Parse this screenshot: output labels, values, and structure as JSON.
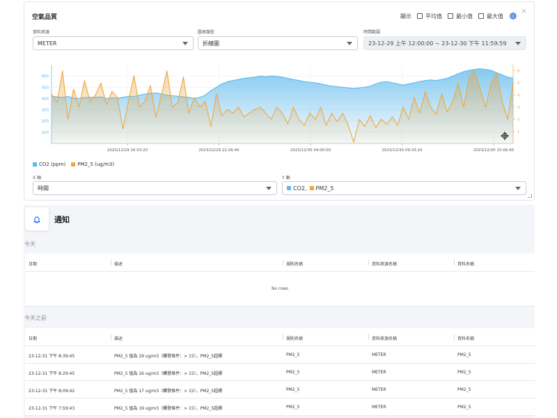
{
  "card": {
    "title": "空氣品質",
    "close": "×",
    "show_label": "顯示",
    "options": [
      "平均值",
      "最小值",
      "最大值"
    ]
  },
  "fields": {
    "source_label": "資料來源",
    "source_value": "METER",
    "type_label": "圖表類型",
    "type_value": "折線圖",
    "range_label": "時間範圍",
    "range_value": "23-12-29 上午 12:00:00 ~ 23-12-30 下午 11:59:59",
    "x_label": "X 軸",
    "x_value": "時間",
    "y_label": "Y 軸",
    "y_values": [
      "CO2,",
      "PM2_5"
    ]
  },
  "colors": {
    "co2": "#5cb8ec",
    "pm25": "#f0a73c",
    "accent": "#2f6de0"
  },
  "chart_data": {
    "type": "area",
    "x_ticks": [
      "2023/12/29 16:53:20",
      "2023/12/29 22:26:40",
      "2023/12/30 04:00:00",
      "2023/12/30 09:33:20",
      "2023/12/30 15:06:40"
    ],
    "y_left_ticks": [
      100,
      200,
      300,
      400,
      500,
      600
    ],
    "y_right_ticks": [
      1,
      2,
      3,
      4,
      5,
      6
    ],
    "ylim_left": [
      0,
      700
    ],
    "ylim_right": [
      0,
      6.5
    ],
    "legend": [
      "CO2 (ppm)",
      "PM2_5 (ug/m3)"
    ],
    "series": [
      {
        "name": "CO2 (ppm)",
        "axis": "left",
        "values": [
          420,
          415,
          410,
          418,
          405,
          400,
          408,
          412,
          410,
          415,
          400,
          405,
          402,
          410,
          420,
          418,
          430,
          440,
          445,
          450,
          440,
          430,
          425,
          420,
          415,
          410,
          400,
          410,
          430,
          470,
          500,
          530,
          550,
          560,
          570,
          580,
          585,
          590,
          600,
          595,
          600,
          598,
          590,
          580,
          570,
          560,
          550,
          545,
          540,
          530,
          520,
          510,
          505,
          500,
          495,
          490,
          495,
          500,
          510,
          530,
          545,
          550,
          540,
          530,
          520,
          530,
          540,
          550,
          560,
          565,
          560,
          570,
          580,
          600,
          620,
          640,
          650,
          660,
          665,
          660,
          650,
          630,
          610,
          590,
          580
        ]
      },
      {
        "name": "PM2_5 (ug/m3)",
        "axis": "right",
        "values": [
          4.1,
          3.4,
          6.0,
          2.0,
          4.5,
          3.0,
          5.2,
          3.5,
          4.0,
          5.0,
          3.2,
          4.3,
          3.8,
          1.2,
          3.5,
          5.6,
          3.0,
          3.5,
          4.8,
          2.2,
          4.0,
          6.0,
          3.0,
          3.4,
          5.5,
          2.5,
          3.8,
          3.0,
          3.5,
          1.4,
          4.1,
          2.3,
          2.8,
          2.5,
          3.0,
          2.2,
          2.5,
          2.8,
          3.0,
          2.5,
          2.0,
          3.0,
          2.5,
          1.6,
          3.0,
          2.0,
          1.5,
          2.5,
          2.0,
          3.0,
          1.5,
          2.5,
          1.8,
          2.5,
          1.5,
          0.1,
          2.0,
          1.4,
          2.3,
          1.3,
          2.0,
          1.6,
          2.2,
          1.5,
          3.0,
          2.0,
          3.8,
          2.5,
          4.3,
          3.0,
          2.4,
          4.1,
          2.6,
          3.5,
          5.0,
          3.0,
          5.5,
          6.0,
          4.5,
          3.0,
          5.0,
          5.8,
          3.5,
          2.0,
          5.0
        ]
      }
    ]
  },
  "notifications": {
    "title": "通知",
    "today_label": "今天",
    "before_label": "今天之前",
    "columns": [
      "日期",
      "描述",
      "規則名稱",
      "資料來源名稱",
      "資料名稱"
    ],
    "empty_text": "No rows",
    "rows": [
      {
        "date": "23-12-31 下午 8:39:45",
        "desc": "PM2_5 值為 19 ug/m3（觸發條件：> 15），PM2_5超標",
        "rule": "PM2_5",
        "source": "METER",
        "data": "PM2_5"
      },
      {
        "date": "23-12-31 下午 8:29:45",
        "desc": "PM2_5 值為 16 ug/m3（觸發條件：> 15），PM2_5超標",
        "rule": "PM2_5",
        "source": "METER",
        "data": "PM2_5"
      },
      {
        "date": "23-12-31 下午 8:09:42",
        "desc": "PM2_5 值為 17 ug/m3（觸發條件：> 15），PM2_5超標",
        "rule": "PM2_5",
        "source": "METER",
        "data": "PM2_5"
      },
      {
        "date": "23-12-31 下午 7:59:43",
        "desc": "PM2_5 值為 19 ug/m3（觸發條件：> 15），PM2_5超標",
        "rule": "PM2_5",
        "source": "METER",
        "data": "PM2_5"
      }
    ]
  }
}
